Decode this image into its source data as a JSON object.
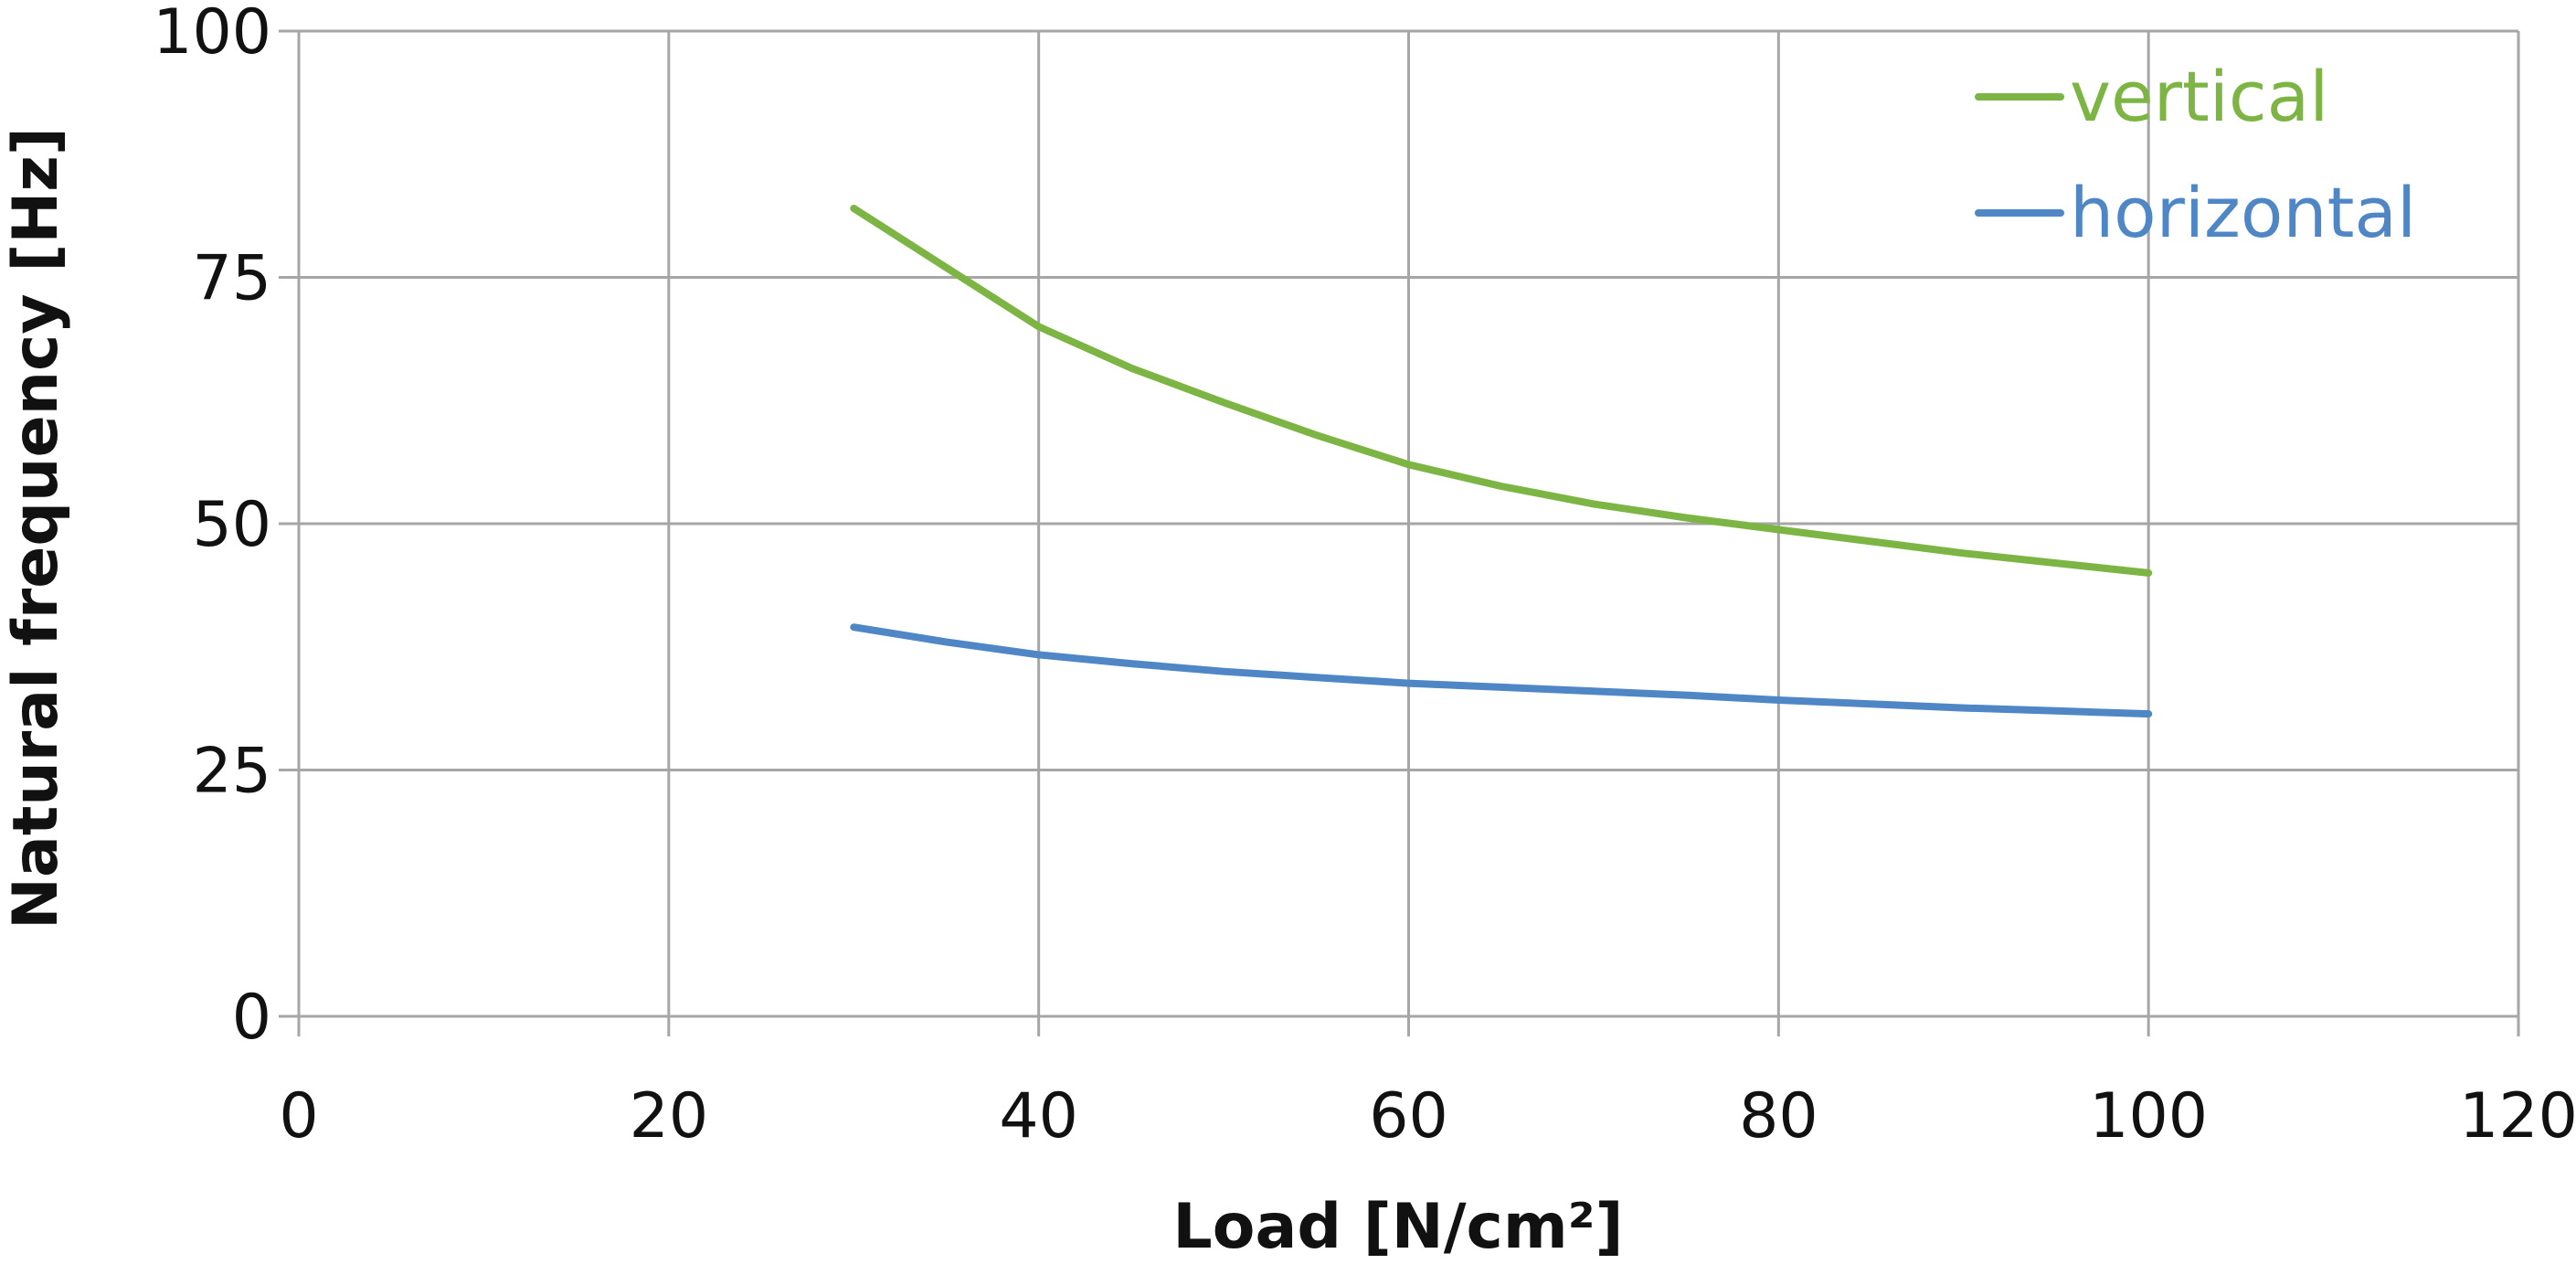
{
  "chart_data": {
    "type": "line",
    "title": "",
    "xlabel": "Load [N/cm²]",
    "ylabel": "Natural frequency [Hz]",
    "xlim": [
      0,
      120
    ],
    "ylim": [
      0,
      100
    ],
    "x_ticks": [
      0,
      20,
      40,
      60,
      80,
      100,
      120
    ],
    "y_ticks": [
      0,
      25,
      50,
      75,
      100
    ],
    "x_tick_labels": [
      "0",
      "20",
      "40",
      "60",
      "80",
      "100",
      "120"
    ],
    "y_tick_labels": [
      "0",
      "25",
      "50",
      "75",
      "100"
    ],
    "grid": true,
    "legend_position": "top-right",
    "series": [
      {
        "name": "vertical",
        "color": "#7db544",
        "x": [
          30,
          35,
          40,
          45,
          50,
          55,
          60,
          65,
          70,
          75,
          80,
          85,
          90,
          95,
          100
        ],
        "y": [
          82,
          76,
          70,
          65.8,
          62.3,
          59,
          56,
          53.8,
          52,
          50.6,
          49.4,
          48.2,
          47,
          46,
          45
        ]
      },
      {
        "name": "horizontal",
        "color": "#4f86c6",
        "x": [
          30,
          35,
          40,
          45,
          50,
          55,
          60,
          65,
          70,
          75,
          80,
          85,
          90,
          95,
          100
        ],
        "y": [
          39.5,
          38,
          36.7,
          35.8,
          35,
          34.4,
          33.8,
          33.4,
          33,
          32.6,
          32.1,
          31.7,
          31.3,
          31,
          30.7
        ]
      }
    ]
  }
}
